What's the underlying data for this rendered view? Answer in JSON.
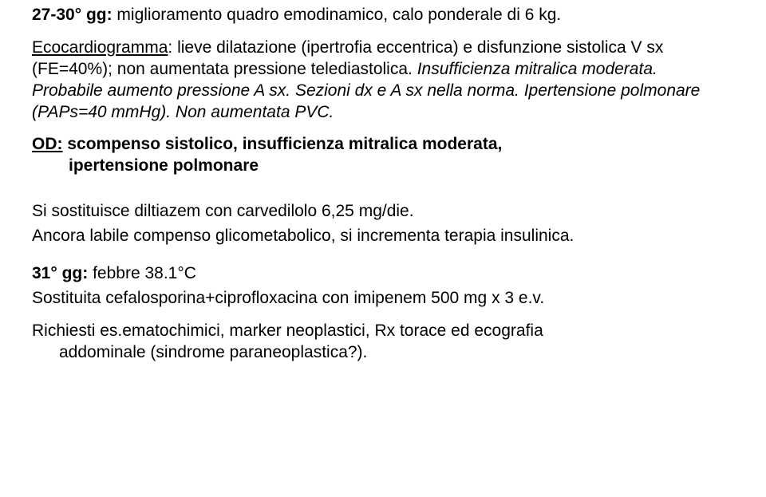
{
  "p1": {
    "lead": "27-30° gg:",
    "rest": " miglioramento quadro emodinamico, calo ponderale di 6 kg."
  },
  "p2": {
    "lead": "Ecocardiogramma",
    "rest1": ": lieve dilatazione (ipertrofia eccentrica) e disfunzione sistolica V sx (FE=40%); non aumentata pressione telediastolica. ",
    "italic": "Insufficienza mitralica moderata. Probabile aumento  pressione A sx. Sezioni dx e A sx nella norma. Ipertensione polmonare (PAPs=40 mmHg). Non aumentata PVC."
  },
  "p3": {
    "lead": "OD:",
    "rest1": " scompenso sistolico, insufficienza mitralica moderata,",
    "rest2": "ipertensione polmonare"
  },
  "p4": "Si sostituisce diltiazem con carvedilolo 6,25 mg/die.",
  "p5": "Ancora labile compenso glicometabolico, si incrementa terapia insulinica.",
  "p6": {
    "lead": "31° gg:",
    "rest": " febbre 38.1°C"
  },
  "p7": "Sostituita cefalosporina+ciprofloxacina con imipenem 500 mg x 3 e.v.",
  "p8": {
    "line1": "Richiesti es.ematochimici, marker neoplastici, Rx torace ed ecografia",
    "line2": "addominale (sindrome paraneoplastica?)."
  },
  "colors": {
    "text": "#000000",
    "background": "#ffffff"
  },
  "font": {
    "family": "Arial",
    "size_pt": 16
  }
}
